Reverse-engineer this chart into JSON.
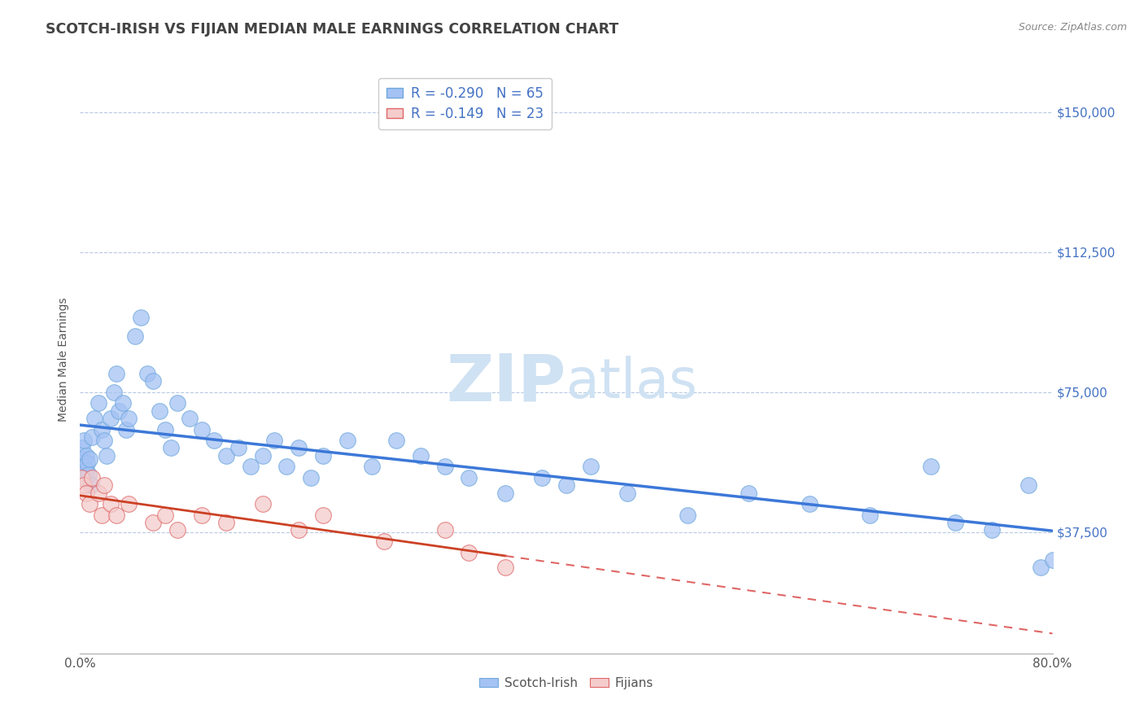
{
  "title": "SCOTCH-IRISH VS FIJIAN MEDIAN MALE EARNINGS CORRELATION CHART",
  "source": "Source: ZipAtlas.com",
  "ylabel": "Median Male Earnings",
  "xlim": [
    0.0,
    0.8
  ],
  "ylim": [
    5000,
    162500
  ],
  "yticks": [
    37500,
    75000,
    112500,
    150000
  ],
  "ytick_labels": [
    "$37,500",
    "$75,000",
    "$112,500",
    "$150,000"
  ],
  "xticks": [
    0.0,
    0.1,
    0.2,
    0.3,
    0.4,
    0.5,
    0.6,
    0.7,
    0.8
  ],
  "xtick_labels": [
    "0.0%",
    "",
    "",
    "",
    "",
    "",
    "",
    "",
    "80.0%"
  ],
  "blue_color": "#a4c2f4",
  "blue_edge": "#6fa8dc",
  "pink_color": "#f4cccc",
  "pink_edge": "#e06666",
  "trend_blue": "#3c78d8",
  "trend_pink": "#cc4125",
  "trend_pink_dashed": "#e06666",
  "axis_color": "#4472c4",
  "title_color": "#434343",
  "grid_color": "#b7c9e2",
  "watermark_color": "#cfe2f3",
  "legend_R1": "R = -0.290",
  "legend_N1": "N = 65",
  "legend_R2": "R = -0.149",
  "legend_N2": "N = 23",
  "legend_label1": "Scotch-Irish",
  "legend_label2": "Fijians",
  "scotch_irish_x": [
    0.001,
    0.002,
    0.003,
    0.003,
    0.004,
    0.005,
    0.005,
    0.006,
    0.007,
    0.008,
    0.009,
    0.01,
    0.012,
    0.015,
    0.018,
    0.02,
    0.022,
    0.025,
    0.028,
    0.03,
    0.032,
    0.035,
    0.038,
    0.04,
    0.045,
    0.05,
    0.055,
    0.06,
    0.065,
    0.07,
    0.075,
    0.08,
    0.09,
    0.1,
    0.11,
    0.12,
    0.13,
    0.14,
    0.15,
    0.16,
    0.17,
    0.18,
    0.19,
    0.2,
    0.22,
    0.24,
    0.26,
    0.28,
    0.3,
    0.32,
    0.35,
    0.38,
    0.4,
    0.42,
    0.45,
    0.5,
    0.55,
    0.6,
    0.65,
    0.7,
    0.72,
    0.75,
    0.78,
    0.79,
    0.8
  ],
  "scotch_irish_y": [
    57000,
    60000,
    55000,
    62000,
    52000,
    58000,
    54000,
    56000,
    53000,
    57000,
    50000,
    63000,
    68000,
    72000,
    65000,
    62000,
    58000,
    68000,
    75000,
    80000,
    70000,
    72000,
    65000,
    68000,
    90000,
    95000,
    80000,
    78000,
    70000,
    65000,
    60000,
    72000,
    68000,
    65000,
    62000,
    58000,
    60000,
    55000,
    58000,
    62000,
    55000,
    60000,
    52000,
    58000,
    62000,
    55000,
    62000,
    58000,
    55000,
    52000,
    48000,
    52000,
    50000,
    55000,
    48000,
    42000,
    48000,
    45000,
    42000,
    55000,
    40000,
    38000,
    50000,
    28000,
    30000
  ],
  "fijian_x": [
    0.001,
    0.003,
    0.005,
    0.008,
    0.01,
    0.015,
    0.018,
    0.02,
    0.025,
    0.03,
    0.04,
    0.06,
    0.07,
    0.08,
    0.1,
    0.12,
    0.15,
    0.18,
    0.2,
    0.25,
    0.3,
    0.32,
    0.35
  ],
  "fijian_y": [
    52000,
    50000,
    48000,
    45000,
    52000,
    48000,
    42000,
    50000,
    45000,
    42000,
    45000,
    40000,
    42000,
    38000,
    42000,
    40000,
    45000,
    38000,
    42000,
    35000,
    38000,
    32000,
    28000
  ]
}
